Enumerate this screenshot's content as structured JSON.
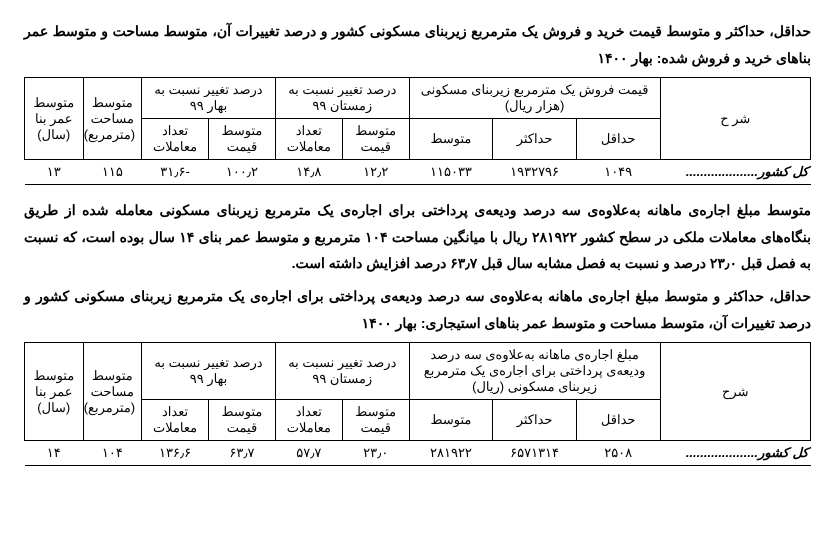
{
  "block1": {
    "title": "حداقل، حداکثر و متوسط قیمت خرید و فروش یک مترمربع زیربنای مسکونی کشور و درصد تغییرات آن، متوسط مساحت و متوسط عمر بناهای خرید و فروش شده: بهار ۱۴۰۰",
    "head": {
      "desc": "شر ح",
      "price_group": "قیمت فروش یک مترمربع زیربنای مسکونی (هزار ریال)",
      "min": "حداقل",
      "max": "حداکثر",
      "avg": "متوسط",
      "chg_winter": "درصد تغییر نسبت به زمستان ۹۹",
      "chg_spring": "درصد تغییر نسبت به بهار ۹۹",
      "avg_price": "متوسط قیمت",
      "tx_count": "تعداد معاملات",
      "area": "متوسط مساحت (مترمربع)",
      "age": "متوسط عمر بنا (سال)"
    },
    "row": {
      "label": "کل کشور",
      "min": "۱۰۴۹",
      "max": "۱۹۳۲۷۹۶",
      "avg": "۱۱۵۰۳۳",
      "w_price": "۱۲٫۲",
      "w_tx": "۱۴٫۸",
      "s_price": "۱۰۰٫۲",
      "s_tx": "-۳۱٫۶",
      "area": "۱۱۵",
      "age": "۱۳"
    }
  },
  "mid_para": "متوسط مبلغ اجاره‌ی ماهانه به‌علاوه‌ی سه درصد ودیعه‌ی پرداختی برای اجاره‌ی یک مترمربع زیربنای مسکونی معامله شده از طریق بنگاه‌های معاملات ملکی در سطح کشور ۲۸۱۹۲۲ ریال با میانگین مساحت ۱۰۴ مترمربع و متوسط عمر بنای ۱۴ سال بوده است، که نسبت به فصل قبل ۲۳٫۰ درصد و نسبت به فصل مشابه سال قبل ۶۳٫۷ درصد افزایش داشته است.",
  "block2": {
    "title": "حداقل، حداکثر و متوسط مبلغ اجاره‌ی ماهانه به‌علاوه‌ی سه درصد ودیعه‌ی پرداختی برای اجاره‌ی یک مترمربع زیربنای مسکونی کشور و درصد تغییرات آن، متوسط مساحت و متوسط عمر بناهای استیجاری: بهار ۱۴۰۰",
    "head": {
      "desc": "شرح",
      "price_group": "مبلغ اجاره‌ی ماهانه به‌علاوه‌ی سه درصد ودیعه‌ی پرداختی برای اجاره‌ی یک مترمربع زیربنای مسکونی (ریال)",
      "min": "حداقل",
      "max": "حداکثر",
      "avg": "متوسط",
      "chg_winter": "درصد تغییر نسبت به زمستان ۹۹",
      "chg_spring": "درصد تغییر نسبت به بهار ۹۹",
      "avg_price": "متوسط قیمت",
      "tx_count": "تعداد معاملات",
      "area": "متوسط مساحت (مترمربع)",
      "age": "متوسط عمر بنا (سال)"
    },
    "row": {
      "label": "کل کشور",
      "min": "۲۵۰۸",
      "max": "۶۵۷۱۳۱۴",
      "avg": "۲۸۱۹۲۲",
      "w_price": "۲۳٫۰",
      "w_tx": "۵۷٫۷",
      "s_price": "۶۳٫۷",
      "s_tx": "۱۳۶٫۶",
      "area": "۱۰۴",
      "age": "۱۴"
    }
  },
  "dots": "...................."
}
